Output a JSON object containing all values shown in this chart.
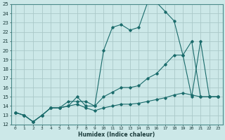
{
  "xlabel": "Humidex (Indice chaleur)",
  "bg_color": "#cce8e8",
  "grid_color": "#aac8c8",
  "line_color": "#1a6b6b",
  "xlim": [
    -0.5,
    23.5
  ],
  "ylim": [
    12,
    25
  ],
  "xticks": [
    0,
    1,
    2,
    3,
    4,
    5,
    6,
    7,
    8,
    9,
    10,
    11,
    12,
    13,
    14,
    15,
    16,
    17,
    18,
    19,
    20,
    21,
    22,
    23
  ],
  "yticks": [
    12,
    13,
    14,
    15,
    16,
    17,
    18,
    19,
    20,
    21,
    22,
    23,
    24,
    25
  ],
  "line1_x": [
    0,
    1,
    2,
    3,
    4,
    5,
    6,
    7,
    8,
    9,
    10,
    11,
    12,
    13,
    14,
    15,
    16,
    17,
    18,
    19,
    20,
    21,
    22,
    23
  ],
  "line1_y": [
    13.3,
    13.0,
    12.3,
    13.0,
    13.8,
    13.8,
    14.0,
    14.2,
    13.8,
    13.5,
    13.8,
    14.0,
    14.2,
    14.2,
    14.3,
    14.5,
    14.7,
    14.9,
    15.2,
    15.4,
    15.2,
    15.0,
    15.0,
    15.0
  ],
  "line2_x": [
    0,
    1,
    2,
    3,
    4,
    5,
    6,
    7,
    8,
    9,
    10,
    11,
    12,
    13,
    14,
    15,
    16,
    17,
    18,
    19,
    20,
    21,
    22,
    23
  ],
  "line2_y": [
    13.3,
    13.0,
    12.3,
    13.0,
    13.8,
    13.8,
    14.0,
    15.0,
    14.0,
    14.0,
    20.0,
    22.5,
    22.8,
    22.2,
    22.5,
    25.2,
    25.2,
    24.2,
    23.2,
    19.5,
    21.0,
    15.0,
    15.0,
    15.0
  ],
  "line3_x": [
    0,
    1,
    2,
    3,
    4,
    5,
    6,
    7,
    8,
    9,
    10,
    11,
    12,
    13,
    14,
    15,
    16,
    17,
    18,
    19,
    20,
    21,
    22,
    23
  ],
  "line3_y": [
    13.3,
    13.0,
    12.3,
    13.0,
    13.8,
    13.8,
    14.5,
    14.5,
    14.5,
    14.0,
    15.0,
    15.5,
    16.0,
    16.0,
    16.2,
    17.0,
    17.5,
    18.5,
    19.5,
    19.5,
    15.0,
    21.0,
    15.0,
    15.0
  ]
}
